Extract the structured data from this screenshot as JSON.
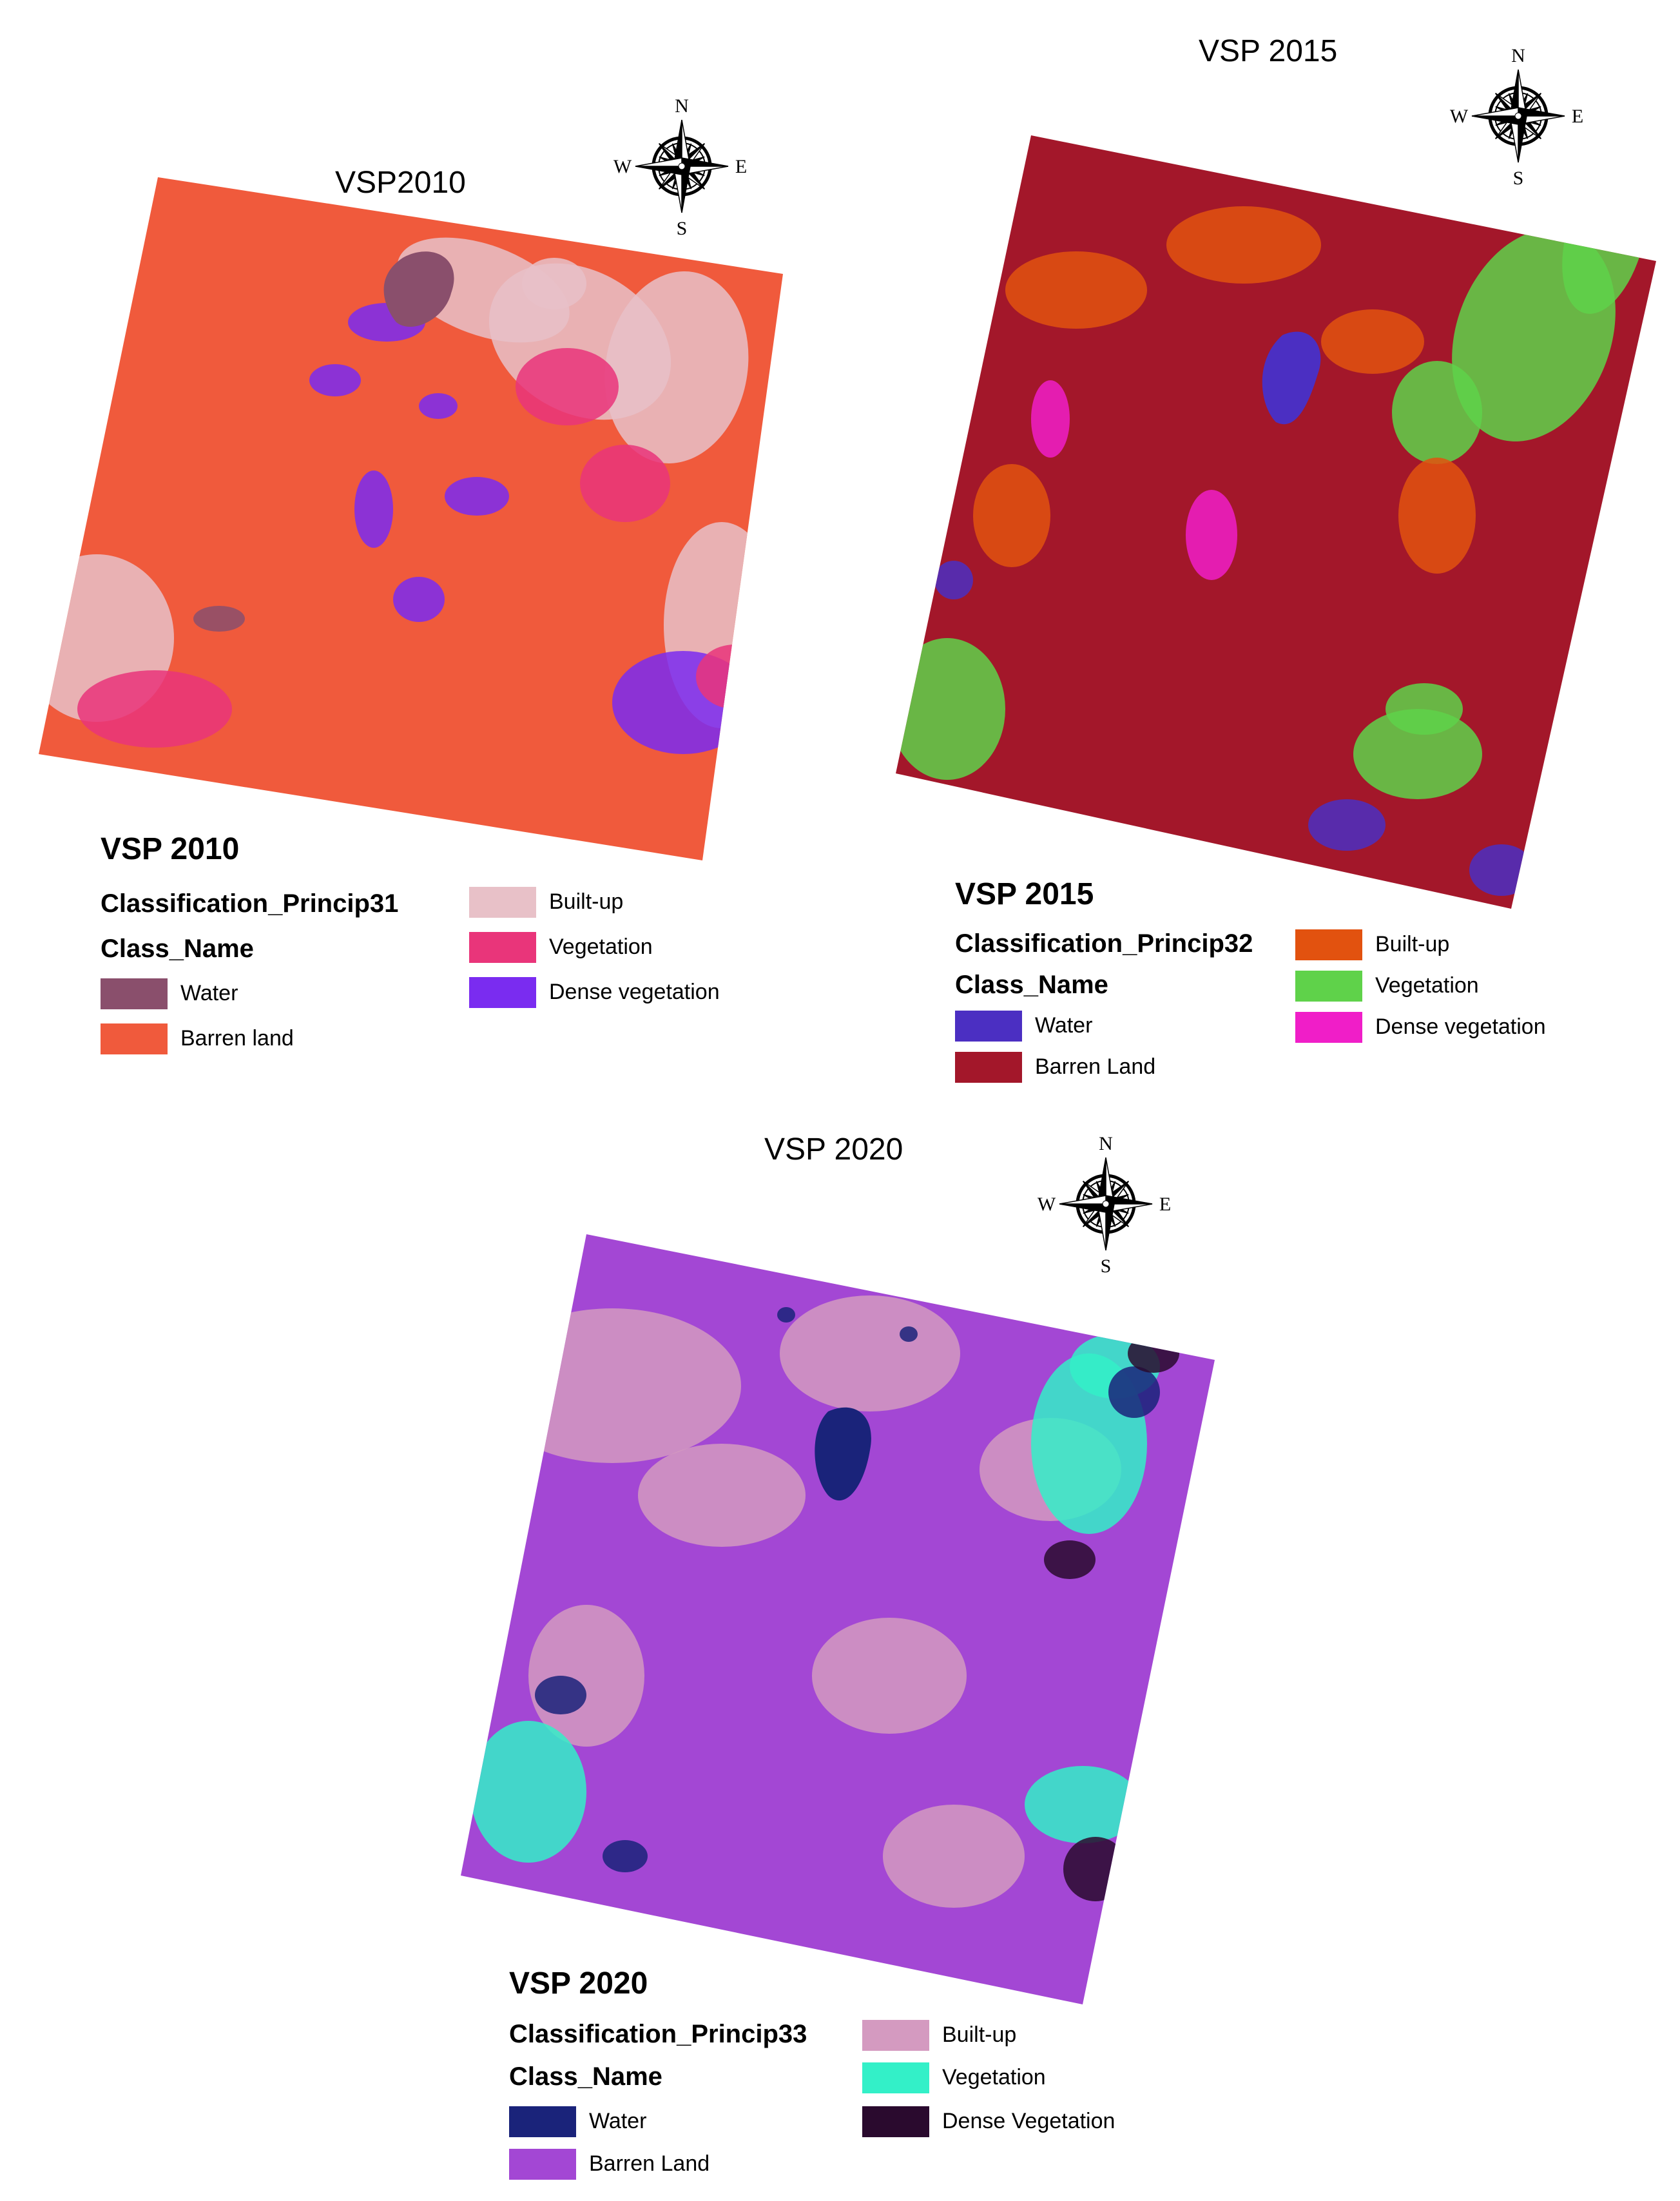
{
  "maps": [
    {
      "id": "vsp2010",
      "map_title": "VSP2010",
      "compass": {
        "north": "N",
        "south": "S",
        "east": "E",
        "west": "W",
        "icon": "north-arrow-compass-rose-icon"
      },
      "base_color": "#f05a3c",
      "legend": {
        "title": "VSP 2010",
        "layer": "Classification_Princip31",
        "field": "Class_Name",
        "classes": [
          {
            "label": "Water",
            "color": "#8a4f6c"
          },
          {
            "label": "Barren land",
            "color": "#f05a3c"
          },
          {
            "label": "Built-up",
            "color": "#e8c1c8"
          },
          {
            "label": "Vegetation",
            "color": "#e9357a"
          },
          {
            "label": "Dense vegetation",
            "color": "#7a2cf0"
          }
        ]
      }
    },
    {
      "id": "vsp2015",
      "map_title": "VSP 2015",
      "compass": {
        "north": "N",
        "south": "S",
        "east": "E",
        "west": "W",
        "icon": "north-arrow-compass-rose-icon"
      },
      "base_color": "#a3172a",
      "legend": {
        "title": "VSP 2015",
        "layer": "Classification_Princip32",
        "field": "Class_Name",
        "classes": [
          {
            "label": "Water",
            "color": "#4b2fc2"
          },
          {
            "label": "Barren Land",
            "color": "#a3172a"
          },
          {
            "label": "Built-up",
            "color": "#e2520f"
          },
          {
            "label": "Vegetation",
            "color": "#5fd24a"
          },
          {
            "label": "Dense vegetation",
            "color": "#f01ec8"
          }
        ]
      }
    },
    {
      "id": "vsp2020",
      "map_title": "VSP 2020",
      "compass": {
        "north": "N",
        "south": "S",
        "east": "E",
        "west": "W",
        "icon": "north-arrow-compass-rose-icon"
      },
      "base_color": "#a347d4",
      "legend": {
        "title": "VSP 2020",
        "layer": "Classification_Princip33",
        "field": "Class_Name",
        "classes": [
          {
            "label": "Water",
            "color": "#1a237a"
          },
          {
            "label": "Barren Land",
            "color": "#a347d4"
          },
          {
            "label": "Built-up",
            "color": "#d49ac0"
          },
          {
            "label": "Vegetation",
            "color": "#33f0c8"
          },
          {
            "label": "Dense Vegetation",
            "color": "#2a0a2e"
          }
        ]
      }
    }
  ]
}
